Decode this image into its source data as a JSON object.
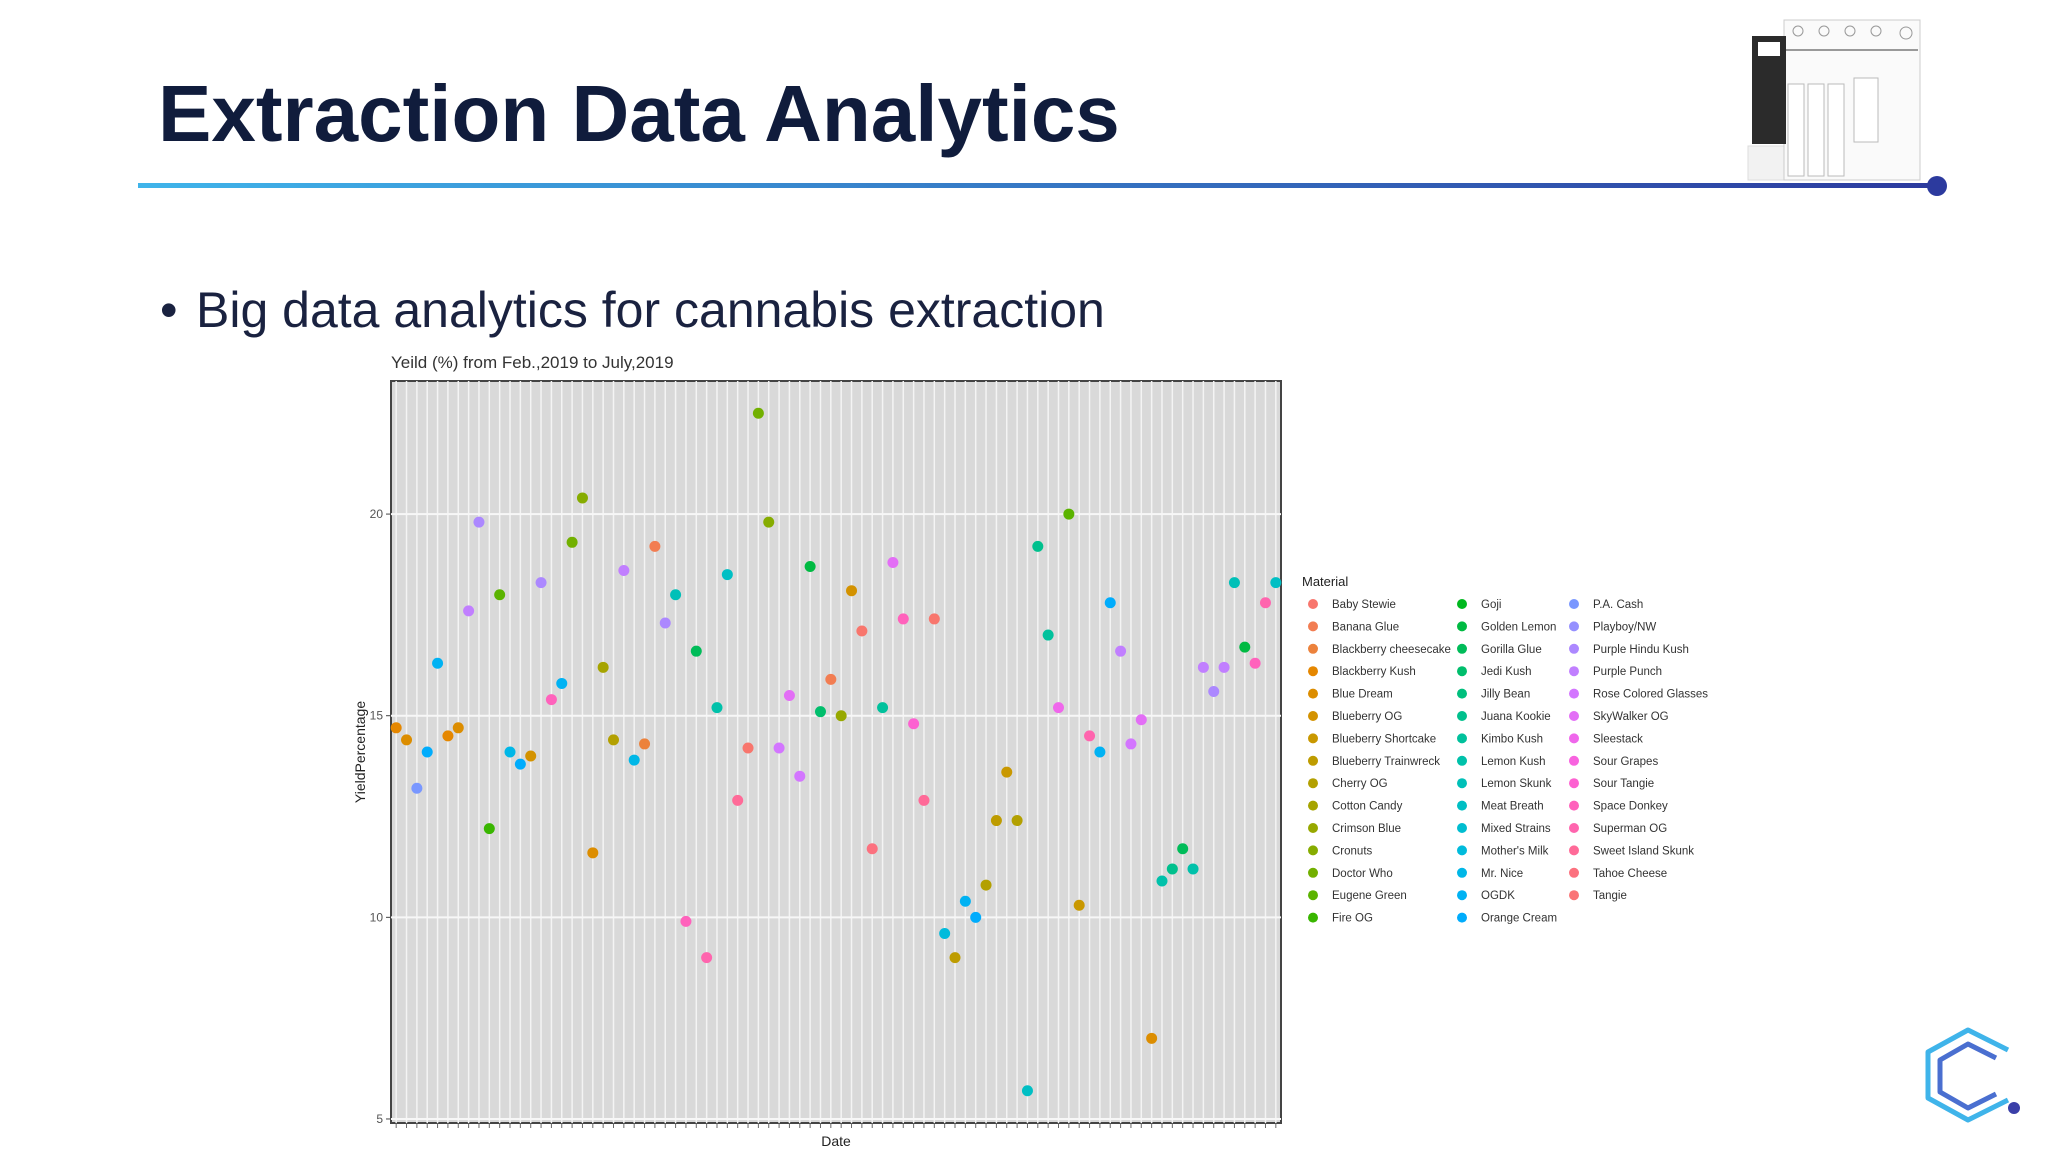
{
  "header": {
    "title": "Extraction Data Analytics"
  },
  "bullet": "Big data analytics for cannabis extraction",
  "chart_data": {
    "type": "scatter",
    "title": "Yeild (%) from Feb.,2019 to July,2019",
    "xlabel": "Date",
    "ylabel": "YieldPercentage",
    "categories": [
      null,
      null,
      null,
      null,
      null,
      null,
      null,
      null,
      null,
      null,
      null,
      null,
      null,
      null,
      null,
      null,
      null,
      null,
      null,
      null,
      null,
      null,
      null,
      null,
      null,
      null,
      null,
      null,
      null,
      null,
      null,
      null,
      null,
      null,
      null,
      null,
      null,
      null,
      null,
      null,
      null,
      null,
      null,
      null,
      null,
      null,
      null,
      null,
      null,
      null,
      null,
      null,
      null,
      null,
      null,
      null,
      null,
      null,
      null,
      null,
      null,
      null,
      null,
      null,
      null,
      null,
      null,
      null,
      null,
      null,
      null,
      null,
      null,
      null,
      null,
      null,
      null,
      null,
      null,
      null,
      null,
      null,
      null,
      null,
      null,
      null
    ],
    "values": [
      14.7,
      14.4,
      13.2,
      14.1,
      16.3,
      14.5,
      14.7,
      17.6,
      19.8,
      12.2,
      18.0,
      14.1,
      13.8,
      14.0,
      18.3,
      15.4,
      15.8,
      19.3,
      20.4,
      11.6,
      16.2,
      14.4,
      18.6,
      13.9,
      14.3,
      19.2,
      17.3,
      18.0,
      9.9,
      16.6,
      9.0,
      15.2,
      18.5,
      12.9,
      14.2,
      22.5,
      19.8,
      14.2,
      15.5,
      13.5,
      18.7,
      15.1,
      15.9,
      15.0,
      18.1,
      17.1,
      11.7,
      15.2,
      18.8,
      17.4,
      14.8,
      12.9,
      17.4,
      9.6,
      9.0,
      10.4,
      10.0,
      10.8,
      12.4,
      13.6,
      12.4,
      5.7,
      19.2,
      17.0,
      15.2,
      20.0,
      10.3,
      14.5,
      14.1,
      17.8,
      16.6,
      14.3,
      14.9,
      7.0,
      10.9,
      11.2,
      11.7,
      11.2,
      16.2,
      15.6,
      16.2,
      18.3,
      16.7,
      16.3,
      17.8,
      18.3
    ],
    "colors": [
      "#E58700",
      "#DC8D00",
      "#7997FF",
      "#00ACFC",
      "#00B2F3",
      "#E58700",
      "#DC8D00",
      "#C17FFF",
      "#AC88FF",
      "#39B600",
      "#5BB300",
      "#00B7E7",
      "#00ACFC",
      "#D39200",
      "#AC88FF",
      "#FF62BC",
      "#00B2F3",
      "#72B000",
      "#86AC00",
      "#DC8D00",
      "#A6A400",
      "#B3A000",
      "#C17FFF",
      "#00B7E7",
      "#EC823C",
      "#F27D52",
      "#AC88FF",
      "#00C0B8",
      "#FF62BC",
      "#00BC59",
      "#FF65AE",
      "#00C1AA",
      "#00BFC4",
      "#FF6A98",
      "#F8766D",
      "#72B000",
      "#86AC00",
      "#D376FF",
      "#E36EF6",
      "#D376FF",
      "#00BA42",
      "#00BE6C",
      "#F27D52",
      "#97A800",
      "#D39200",
      "#F8766D",
      "#FC717F",
      "#00C19C",
      "#E36EF6",
      "#FF62BC",
      "#FD61D1",
      "#FF6A98",
      "#F8766D",
      "#00BBDC",
      "#BE9C00",
      "#00B2F3",
      "#00ACFC",
      "#B3A000",
      "#BE9C00",
      "#C99800",
      "#B3A000",
      "#00BFC4",
      "#00C08D",
      "#00C19C",
      "#EF67EB",
      "#5BB300",
      "#C99800",
      "#FF65AE",
      "#00B2F3",
      "#00ACFC",
      "#C17FFF",
      "#D376FF",
      "#E36EF6",
      "#DC8D00",
      "#00C1AA",
      "#00C08D",
      "#00BC59",
      "#00C1AA",
      "#C17FFF",
      "#AC88FF",
      "#C17FFF",
      "#00C0B8",
      "#00BA42",
      "#FF62BC",
      "#FF65AE",
      "#00BFC4"
    ],
    "ylim": [
      4.9,
      23.3
    ],
    "yticks": [
      5,
      10,
      15,
      20
    ],
    "grid": true,
    "legend": {
      "title": "Material",
      "items": [
        {
          "name": "Baby Stewie",
          "color": "#F8766D"
        },
        {
          "name": "Banana Glue",
          "color": "#F27D52"
        },
        {
          "name": "Blackberry cheesecake",
          "color": "#EC823C"
        },
        {
          "name": "Blackberry Kush",
          "color": "#E58700"
        },
        {
          "name": "Blue Dream",
          "color": "#DC8D00"
        },
        {
          "name": "Blueberry OG",
          "color": "#D39200"
        },
        {
          "name": "Blueberry Shortcake",
          "color": "#C99800"
        },
        {
          "name": "Blueberry Trainwreck",
          "color": "#BE9C00"
        },
        {
          "name": "Cherry OG",
          "color": "#B3A000"
        },
        {
          "name": "Cotton Candy",
          "color": "#A6A400"
        },
        {
          "name": "Crimson Blue",
          "color": "#97A800"
        },
        {
          "name": "Cronuts",
          "color": "#86AC00"
        },
        {
          "name": "Doctor Who",
          "color": "#72B000"
        },
        {
          "name": "Eugene Green",
          "color": "#5BB300"
        },
        {
          "name": "Fire OG",
          "color": "#39B600"
        },
        {
          "name": "Goji",
          "color": "#00B81F"
        },
        {
          "name": "Golden Lemon",
          "color": "#00BA42"
        },
        {
          "name": "Gorilla Glue",
          "color": "#00BC59"
        },
        {
          "name": "Jedi Kush",
          "color": "#00BE6C"
        },
        {
          "name": "Jilly Bean",
          "color": "#00BF7D"
        },
        {
          "name": "Juana Kookie",
          "color": "#00C08D"
        },
        {
          "name": "Kimbo Kush",
          "color": "#00C19C"
        },
        {
          "name": "Lemon Kush",
          "color": "#00C1AA"
        },
        {
          "name": "Lemon Skunk",
          "color": "#00C0B8"
        },
        {
          "name": "Meat Breath",
          "color": "#00BFC4"
        },
        {
          "name": "Mixed Strains",
          "color": "#00BDD0"
        },
        {
          "name": "Mother's Milk",
          "color": "#00BBDC"
        },
        {
          "name": "Mr. Nice",
          "color": "#00B7E7"
        },
        {
          "name": "OGDK",
          "color": "#00B2F3"
        },
        {
          "name": "Orange Cream",
          "color": "#00ACFC"
        },
        {
          "name": "P.A. Cash",
          "color": "#7997FF"
        },
        {
          "name": "Playboy/NW",
          "color": "#9590FF"
        },
        {
          "name": "Purple Hindu Kush",
          "color": "#AC88FF"
        },
        {
          "name": "Purple Punch",
          "color": "#C17FFF"
        },
        {
          "name": "Rose Colored Glasses",
          "color": "#D376FF"
        },
        {
          "name": "SkyWalker OG",
          "color": "#E36EF6"
        },
        {
          "name": "Sleestack",
          "color": "#EF67EB"
        },
        {
          "name": "Sour Grapes",
          "color": "#F863DF"
        },
        {
          "name": "Sour Tangie",
          "color": "#FD61D1"
        },
        {
          "name": "Space Donkey",
          "color": "#FF62BC"
        },
        {
          "name": "Superman OG",
          "color": "#FF65AE"
        },
        {
          "name": "Sweet Island Skunk",
          "color": "#FF6A98"
        },
        {
          "name": "Tahoe Cheese",
          "color": "#FC717F"
        },
        {
          "name": "Tangie",
          "color": "#FA7476"
        }
      ]
    }
  }
}
